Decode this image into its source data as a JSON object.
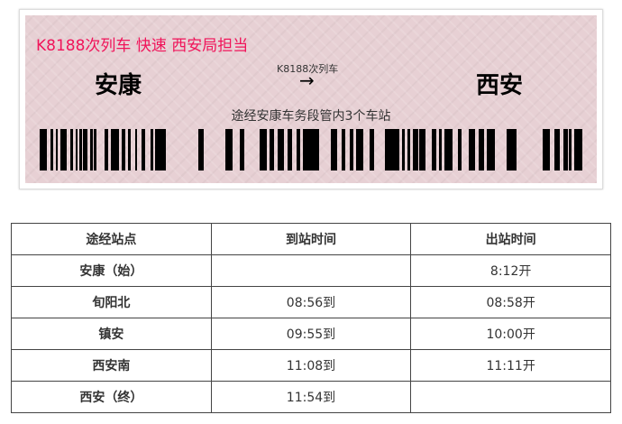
{
  "ticket": {
    "headline": "K8188次列车 快速 西安局担当",
    "from": "安康",
    "to": "西安",
    "train_label": "K8188次列车",
    "arrow": "→",
    "via": "途经安康车务段管内3个车站",
    "colors": {
      "background": "#e7d0d4",
      "headline": "#f0145a"
    }
  },
  "table": {
    "headers": [
      "途经站点",
      "到站时间",
      "出站时间"
    ],
    "rows": [
      {
        "station": "安康（始）",
        "arrive": "",
        "depart": "8:12开"
      },
      {
        "station": "旬阳北",
        "arrive": "08:56到",
        "depart": "08:58开"
      },
      {
        "station": "镇安",
        "arrive": "09:55到",
        "depart": "10:00开"
      },
      {
        "station": "西安南",
        "arrive": "11:08到",
        "depart": "11:11开"
      },
      {
        "station": "西安（终）",
        "arrive": "11:54到",
        "depart": ""
      }
    ]
  }
}
